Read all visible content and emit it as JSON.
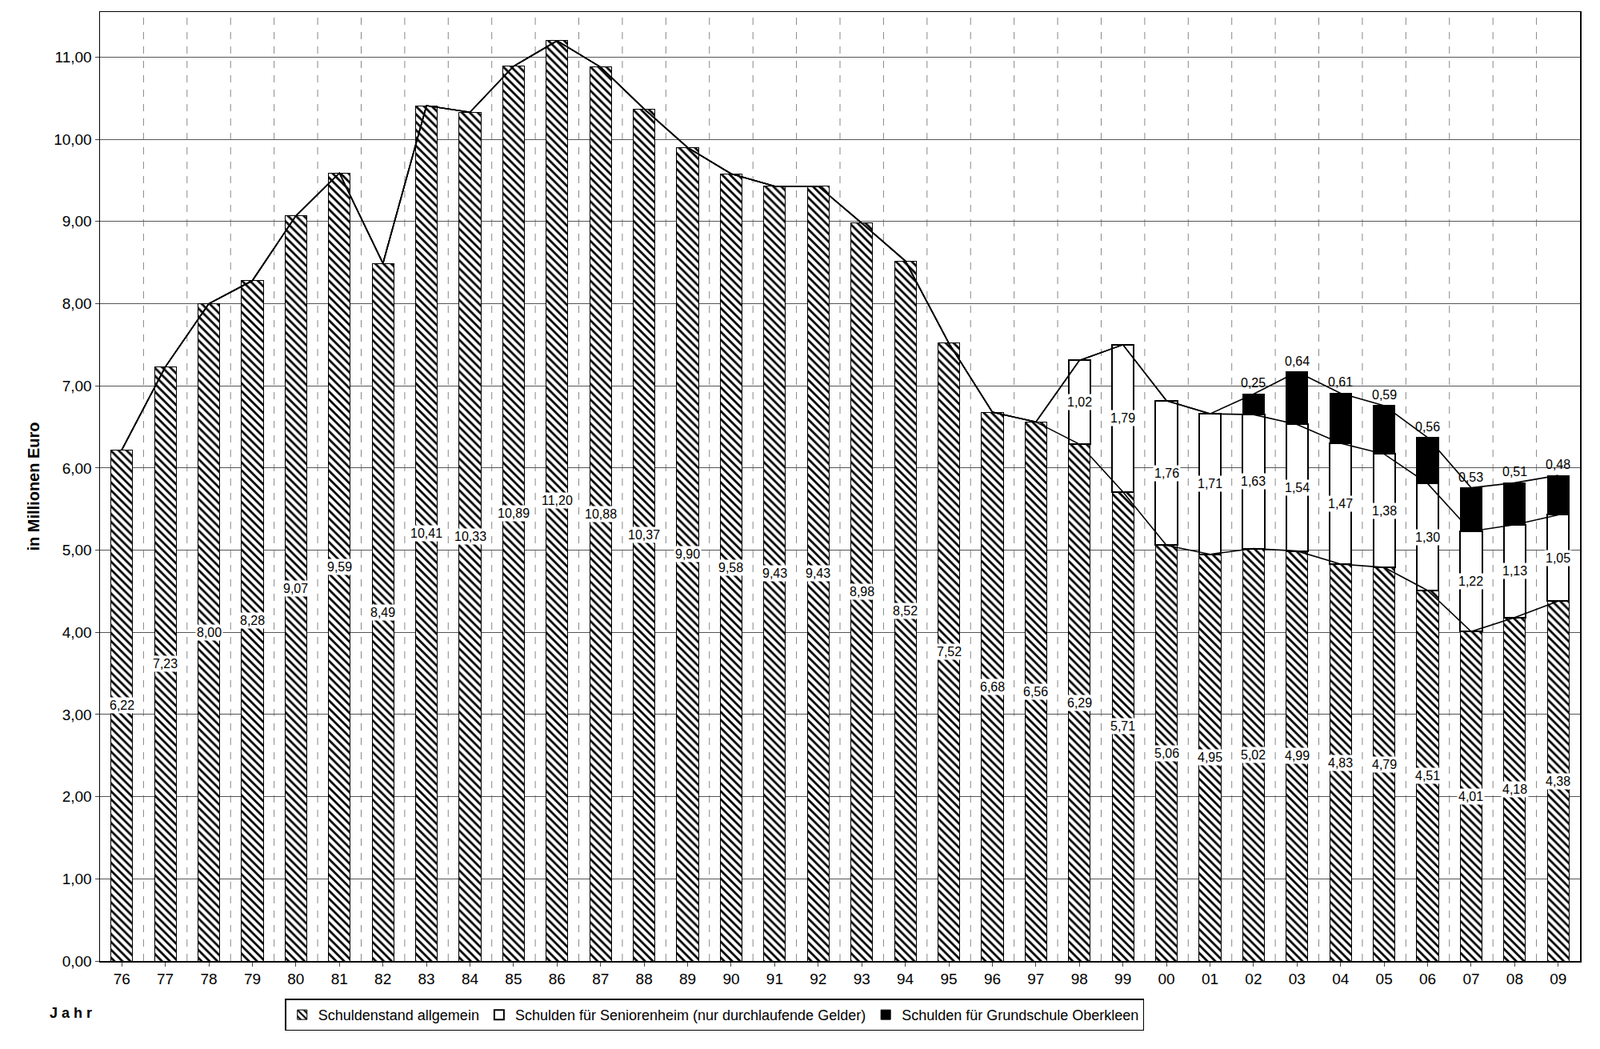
{
  "chart_data": {
    "type": "bar",
    "stacked": true,
    "y_label": "in Millionen Euro",
    "x_label": "J a h r",
    "grid": true,
    "data_labels": true,
    "legend": "bottom",
    "categories": [
      "76",
      "77",
      "78",
      "79",
      "80",
      "81",
      "82",
      "83",
      "84",
      "85",
      "86",
      "87",
      "88",
      "89",
      "90",
      "91",
      "92",
      "93",
      "94",
      "95",
      "96",
      "97",
      "98",
      "99",
      "00",
      "01",
      "02",
      "03",
      "04",
      "05",
      "06",
      "07",
      "08",
      "09"
    ],
    "ylim": [
      0,
      11.55
    ],
    "yticks": [
      {
        "value": 0,
        "label": "0,00"
      },
      {
        "value": 1,
        "label": "1,00"
      },
      {
        "value": 2,
        "label": "2,00"
      },
      {
        "value": 3,
        "label": "3,00"
      },
      {
        "value": 4,
        "label": "4,00"
      },
      {
        "value": 5,
        "label": "5,00"
      },
      {
        "value": 6,
        "label": "6,00"
      },
      {
        "value": 7,
        "label": "7,00"
      },
      {
        "value": 8,
        "label": "8,00"
      },
      {
        "value": 9,
        "label": "9,00"
      },
      {
        "value": 10,
        "label": "10,00"
      },
      {
        "value": 11,
        "label": "11,00"
      }
    ],
    "series": [
      {
        "name": "Schuldenstand allgemein",
        "color": "#000000",
        "marker": "hatch",
        "values": [
          6.22,
          7.23,
          8.0,
          8.28,
          9.07,
          9.59,
          8.49,
          10.41,
          10.33,
          10.89,
          11.2,
          10.88,
          10.37,
          9.9,
          9.58,
          9.43,
          9.43,
          8.98,
          8.52,
          7.52,
          6.68,
          6.56,
          6.29,
          5.71,
          5.06,
          4.95,
          5.02,
          4.99,
          4.83,
          4.79,
          4.51,
          4.01,
          4.18,
          4.38
        ],
        "value_labels": [
          "6,22",
          "7,23",
          "8,00",
          "8,28",
          "9,07",
          "9,59",
          "8,49",
          "10,41",
          "10,33",
          "10,89",
          "11,20",
          "10,88",
          "10,37",
          "9,90",
          "9,58",
          "9,43",
          "9,43",
          "8,98",
          "8,52",
          "7,52",
          "6,68",
          "6,56",
          "6,29",
          "5,71",
          "5,06",
          "4,95",
          "5,02",
          "4,99",
          "4,83",
          "4,79",
          "4,51",
          "4,01",
          "4,18",
          "4,38"
        ]
      },
      {
        "name": "Schulden für Seniorenheim (nur durchlaufende Gelder)",
        "color": "#ffffff",
        "marker": "outline",
        "values": [
          null,
          null,
          null,
          null,
          null,
          null,
          null,
          null,
          null,
          null,
          null,
          null,
          null,
          null,
          null,
          null,
          null,
          null,
          null,
          null,
          null,
          null,
          1.02,
          1.79,
          1.76,
          1.71,
          1.63,
          1.54,
          1.47,
          1.38,
          1.3,
          1.22,
          1.13,
          1.05
        ],
        "value_labels": [
          null,
          null,
          null,
          null,
          null,
          null,
          null,
          null,
          null,
          null,
          null,
          null,
          null,
          null,
          null,
          null,
          null,
          null,
          null,
          null,
          null,
          null,
          "1,02",
          "1,79",
          "1,76",
          "1,71",
          "1,63",
          "1,54",
          "1,47",
          "1,38",
          "1,30",
          "1,22",
          "1,13",
          "1,05"
        ]
      },
      {
        "name": "Schulden für Grundschule Oberkleen",
        "color": "#000000",
        "marker": "solid",
        "values": [
          null,
          null,
          null,
          null,
          null,
          null,
          null,
          null,
          null,
          null,
          null,
          null,
          null,
          null,
          null,
          null,
          null,
          null,
          null,
          null,
          null,
          null,
          null,
          null,
          null,
          null,
          0.25,
          0.64,
          0.61,
          0.59,
          0.56,
          0.53,
          0.51,
          0.48
        ],
        "value_labels": [
          null,
          null,
          null,
          null,
          null,
          null,
          null,
          null,
          null,
          null,
          null,
          null,
          null,
          null,
          null,
          null,
          null,
          null,
          null,
          null,
          null,
          null,
          null,
          null,
          null,
          null,
          "0,25",
          "0,64",
          "0,61",
          "0,59",
          "0,56",
          "0,53",
          "0,51",
          "0,48"
        ]
      }
    ]
  }
}
